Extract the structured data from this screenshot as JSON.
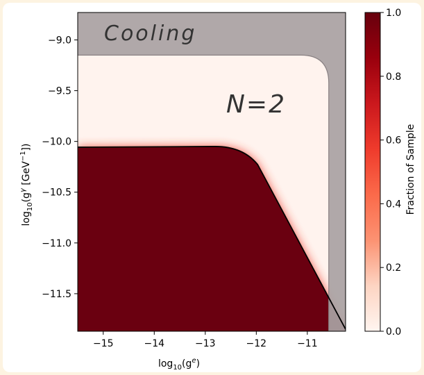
{
  "chart_data": {
    "type": "heatmap",
    "xlabel_main": "log",
    "xlabel_sub": "10",
    "xlabel_rest": "(g",
    "xlabel_sup": "e",
    "xlabel_end": ")",
    "ylabel_main": "log",
    "ylabel_sub": "10",
    "ylabel_rest": "(g",
    "ylabel_sup": "γ",
    "ylabel_mid": " [GeV",
    "ylabel_sup2": "−1",
    "ylabel_end": "])",
    "xlim": [
      -15.5,
      -10.25
    ],
    "ylim": [
      -11.87,
      -8.73
    ],
    "x_ticks": [
      {
        "value": -15,
        "label": "−15"
      },
      {
        "value": -14,
        "label": "−14"
      },
      {
        "value": -13,
        "label": "−13"
      },
      {
        "value": -12,
        "label": "−12"
      },
      {
        "value": -11,
        "label": "−11"
      }
    ],
    "y_ticks": [
      {
        "value": -9.0,
        "label": "−9.0"
      },
      {
        "value": -9.5,
        "label": "−9.5"
      },
      {
        "value": -10.0,
        "label": "−10.0"
      },
      {
        "value": -10.5,
        "label": "−10.5"
      },
      {
        "value": -11.0,
        "label": "−11.0"
      },
      {
        "value": -11.5,
        "label": "−11.5"
      }
    ],
    "regions": {
      "excluded_plateau_y": -10.05,
      "excluded_knee_x": -12.3,
      "excluded_end": {
        "x": -10.25,
        "y": -11.85
      },
      "cooling_bound_y": -9.15,
      "cooling_bound_x": -10.58
    },
    "colorbar": {
      "label": "Fraction of Sample",
      "range": [
        0.0,
        1.0
      ],
      "ticks": [
        {
          "value": 0.0,
          "label": "0.0"
        },
        {
          "value": 0.2,
          "label": "0.2"
        },
        {
          "value": 0.4,
          "label": "0.4"
        },
        {
          "value": 0.6,
          "label": "0.6"
        },
        {
          "value": 0.8,
          "label": "0.8"
        },
        {
          "value": 1.0,
          "label": "1.0"
        }
      ],
      "colors": [
        "#fff5f0",
        "#fdd4c2",
        "#fc9272",
        "#fb6a4a",
        "#ef3b2c",
        "#cb181d",
        "#99000d",
        "#67000d"
      ]
    },
    "annotations": {
      "cooling": "Cooling",
      "n_label": "N=2"
    },
    "colors": {
      "excluded": "#6a0010",
      "cooling_overlay": "#a9a2a3",
      "background": "#fff3ee",
      "boundary_line": "#000000"
    }
  }
}
